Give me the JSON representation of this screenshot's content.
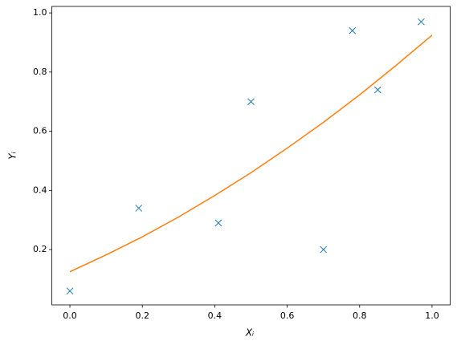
{
  "chart_data": {
    "type": "scatter",
    "xlabel": "Xᵢ",
    "ylabel": "Yᵢ",
    "xlim": [
      -0.05,
      1.05
    ],
    "ylim": [
      0.013,
      1.022
    ],
    "xticks": [
      {
        "value": 0,
        "label": "0.0"
      },
      0.2,
      0.4,
      0.6,
      0.8,
      {
        "value": 1,
        "label": "1.0"
      }
    ],
    "yticks": [
      0.2,
      0.4,
      0.6,
      0.8,
      {
        "value": 1,
        "label": "1.0"
      }
    ],
    "series": [
      {
        "style": "x",
        "color": "#1f77b4",
        "x": [
          0,
          0.19,
          0.41,
          0.5,
          0.7,
          0.78,
          0.85,
          0.97
        ],
        "values": [
          0.06,
          0.34,
          0.29,
          0.7,
          0.2,
          0.94,
          0.74,
          0.97
        ]
      },
      {
        "style": "line",
        "color": "#ff7f0e",
        "x": [
          0,
          0.1,
          0.2,
          0.3,
          0.4,
          0.5,
          0.6,
          0.7,
          0.8,
          0.9,
          1
        ],
        "values": [
          0.125,
          0.182,
          0.243,
          0.31,
          0.383,
          0.46,
          0.543,
          0.63,
          0.723,
          0.822,
          0.925
        ]
      }
    ]
  }
}
